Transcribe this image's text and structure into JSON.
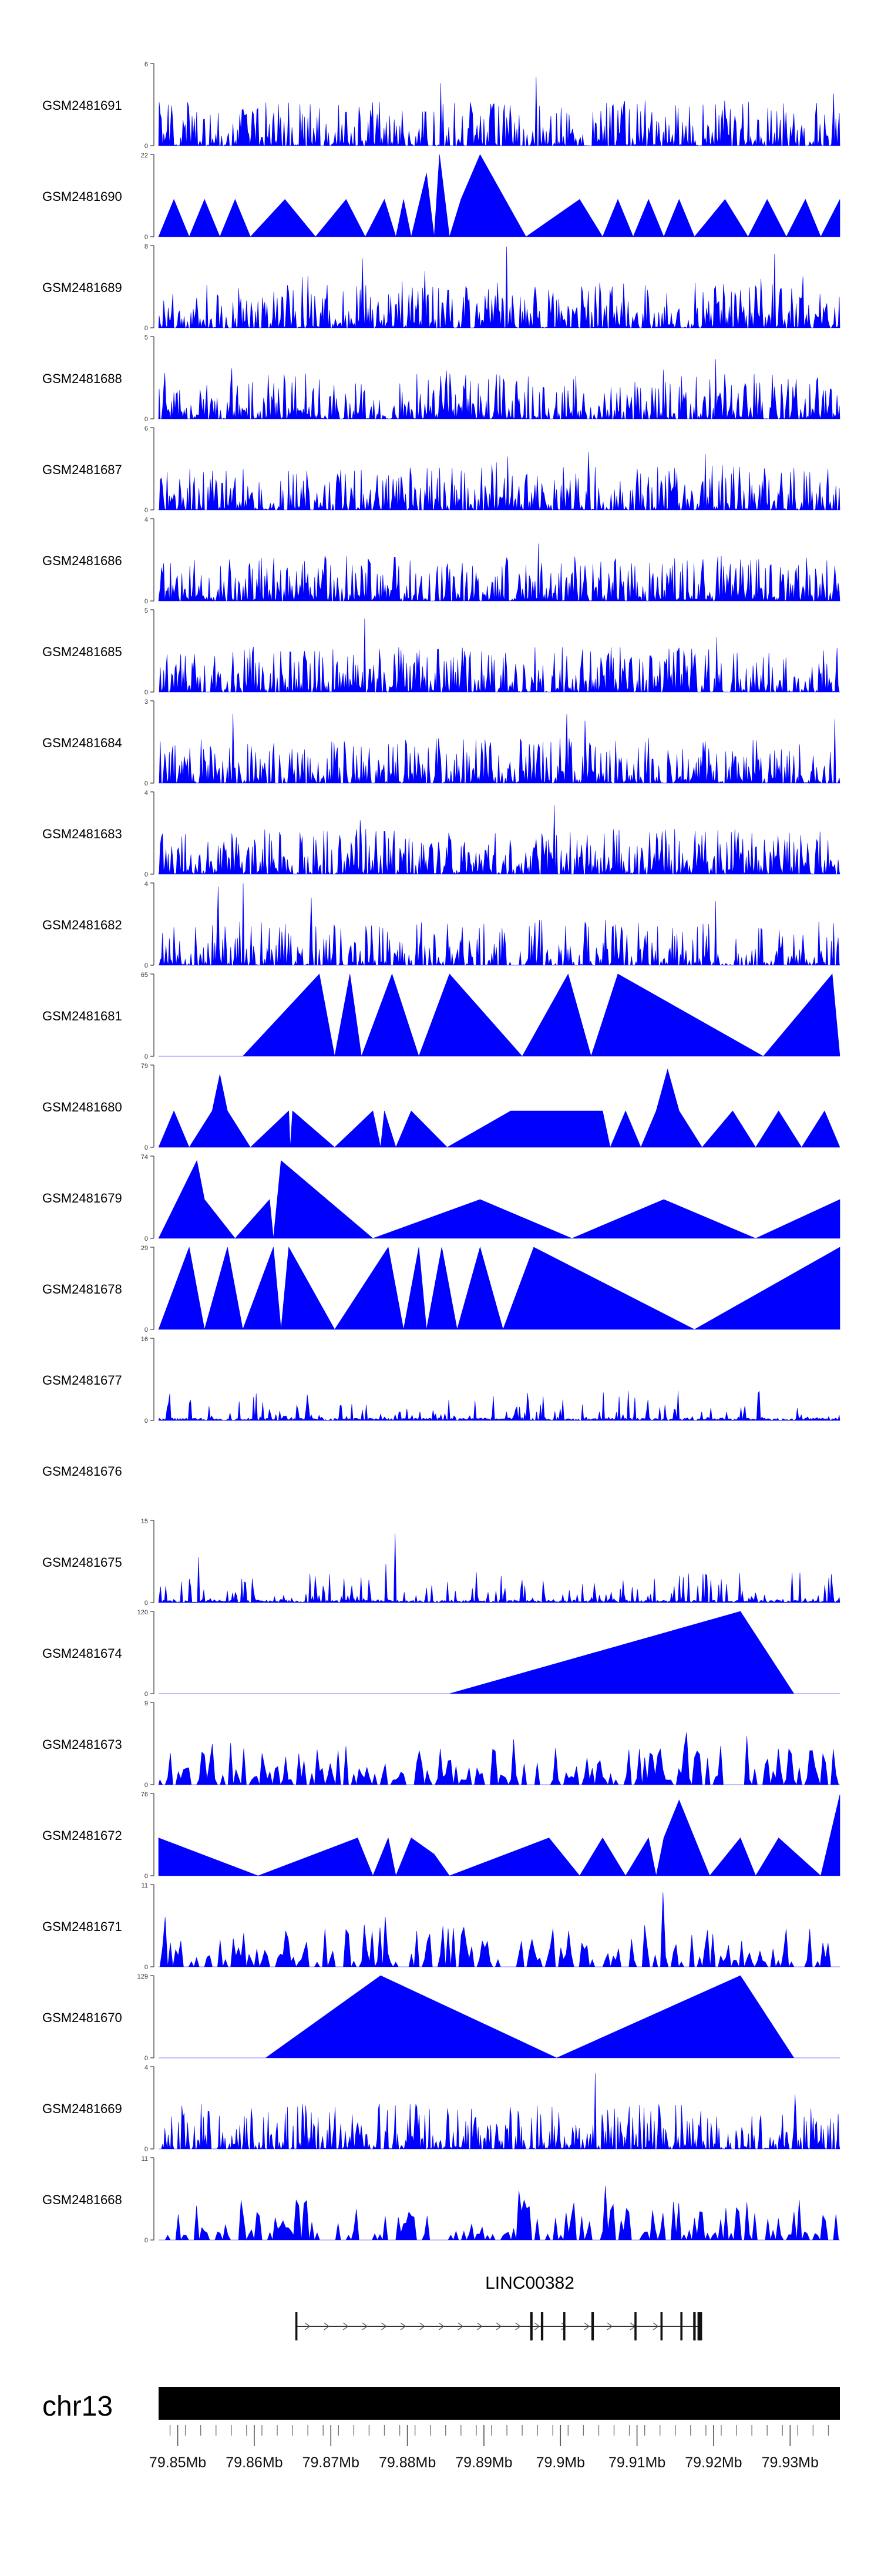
{
  "chart_data": {
    "type": "area",
    "chromosome": "chr13",
    "gene": {
      "name": "LINC00382"
    },
    "x_range_mb": [
      79.8475,
      79.9365
    ],
    "x_ticks": [
      {
        "value": 79.85,
        "label": "79.85Mb"
      },
      {
        "value": 79.86,
        "label": "79.86Mb"
      },
      {
        "value": 79.87,
        "label": "79.87Mb"
      },
      {
        "value": 79.88,
        "label": "79.88Mb"
      },
      {
        "value": 79.89,
        "label": "79.89Mb"
      },
      {
        "value": 79.9,
        "label": "79.9Mb"
      },
      {
        "value": 79.91,
        "label": "79.91Mb"
      },
      {
        "value": 79.92,
        "label": "79.92Mb"
      },
      {
        "value": 79.93,
        "label": "79.93Mb"
      }
    ],
    "fill_color": "#0000ff",
    "series": [
      {
        "name": "GSM2481691",
        "ymax": 6,
        "ymax_label": "6",
        "ylabel": "0",
        "style": "dense",
        "density": 0.75,
        "empty": false
      },
      {
        "name": "GSM2481690",
        "ymax": 22,
        "ymax_label": "22",
        "ylabel": "0",
        "style": "peaks",
        "peaks": [
          [
            79.8475,
            0
          ],
          [
            79.8495,
            10
          ],
          [
            79.8515,
            0
          ],
          [
            79.8535,
            10
          ],
          [
            79.8555,
            0
          ],
          [
            79.8575,
            10
          ],
          [
            79.8595,
            0
          ],
          [
            79.864,
            10
          ],
          [
            79.868,
            0
          ],
          [
            79.872,
            10
          ],
          [
            79.8745,
            0
          ],
          [
            79.877,
            10
          ],
          [
            79.8785,
            0
          ],
          [
            79.8795,
            10
          ],
          [
            79.8805,
            0
          ],
          [
            79.8825,
            17
          ],
          [
            79.8835,
            0
          ],
          [
            79.8842,
            22
          ],
          [
            79.8855,
            0
          ],
          [
            79.887,
            10
          ],
          [
            79.8895,
            22
          ],
          [
            79.8955,
            0
          ],
          [
            79.9025,
            10
          ],
          [
            79.9055,
            0
          ],
          [
            79.9075,
            10
          ],
          [
            79.9095,
            0
          ],
          [
            79.9115,
            10
          ],
          [
            79.9135,
            0
          ],
          [
            79.9155,
            10
          ],
          [
            79.9175,
            0
          ],
          [
            79.9215,
            10
          ],
          [
            79.9245,
            0
          ],
          [
            79.927,
            10
          ],
          [
            79.9295,
            0
          ],
          [
            79.932,
            10
          ],
          [
            79.934,
            0
          ],
          [
            79.9365,
            10
          ]
        ]
      },
      {
        "name": "GSM2481689",
        "ymax": 8,
        "ymax_label": "8",
        "ylabel": "0",
        "style": "dense",
        "density": 0.85,
        "empty": false
      },
      {
        "name": "GSM2481688",
        "ymax": 5,
        "ymax_label": "5",
        "ylabel": "0",
        "style": "dense",
        "density": 0.8,
        "empty": false
      },
      {
        "name": "GSM2481687",
        "ymax": 6,
        "ymax_label": "6",
        "ylabel": "0",
        "style": "dense",
        "density": 0.8,
        "empty": false
      },
      {
        "name": "GSM2481686",
        "ymax": 4,
        "ymax_label": "4",
        "ylabel": "0",
        "style": "dense",
        "density": 0.9,
        "empty": false
      },
      {
        "name": "GSM2481685",
        "ymax": 5,
        "ymax_label": "5",
        "ylabel": "0",
        "style": "dense",
        "density": 0.8,
        "empty": false
      },
      {
        "name": "GSM2481684",
        "ymax": 3,
        "ymax_label": "3",
        "ylabel": "0",
        "style": "dense",
        "density": 0.85,
        "empty": false
      },
      {
        "name": "GSM2481683",
        "ymax": 4,
        "ymax_label": "4",
        "ylabel": "0",
        "style": "dense",
        "density": 0.85,
        "empty": false
      },
      {
        "name": "GSM2481682",
        "ymax": 4,
        "ymax_label": "4",
        "ylabel": "0",
        "style": "dense",
        "density": 0.65,
        "empty": false
      },
      {
        "name": "GSM2481681",
        "ymax": 65,
        "ymax_label": "65",
        "ylabel": "0",
        "style": "peaks",
        "peaks": [
          [
            79.8585,
            0
          ],
          [
            79.8685,
            65
          ],
          [
            79.8705,
            0
          ],
          [
            79.8725,
            65
          ],
          [
            79.874,
            0
          ],
          [
            79.878,
            65
          ],
          [
            79.8815,
            0
          ],
          [
            79.8855,
            65
          ],
          [
            79.895,
            0
          ],
          [
            79.901,
            65
          ],
          [
            79.904,
            0
          ],
          [
            79.9075,
            65
          ],
          [
            79.9265,
            0
          ],
          [
            79.9355,
            65
          ],
          [
            79.9365,
            0
          ]
        ]
      },
      {
        "name": "GSM2481680",
        "ymax": 79,
        "ymax_label": "79",
        "ylabel": "0",
        "style": "peaks",
        "peaks": [
          [
            79.8475,
            0
          ],
          [
            79.8495,
            35
          ],
          [
            79.8515,
            0
          ],
          [
            79.8545,
            35
          ],
          [
            79.8555,
            70
          ],
          [
            79.8565,
            35
          ],
          [
            79.8595,
            0
          ],
          [
            79.8645,
            35
          ],
          [
            79.8647,
            0
          ],
          [
            79.865,
            35
          ],
          [
            79.8705,
            0
          ],
          [
            79.8755,
            35
          ],
          [
            79.8765,
            0
          ],
          [
            79.877,
            35
          ],
          [
            79.8785,
            0
          ],
          [
            79.8805,
            35
          ],
          [
            79.8852,
            0
          ],
          [
            79.8935,
            35
          ],
          [
            79.9055,
            35
          ],
          [
            79.9065,
            0
          ],
          [
            79.9085,
            35
          ],
          [
            79.9105,
            0
          ],
          [
            79.9125,
            35
          ],
          [
            79.914,
            75
          ],
          [
            79.9155,
            35
          ],
          [
            79.9185,
            0
          ],
          [
            79.9225,
            35
          ],
          [
            79.9255,
            0
          ],
          [
            79.9285,
            35
          ],
          [
            79.9315,
            0
          ],
          [
            79.9345,
            35
          ],
          [
            79.9365,
            0
          ]
        ]
      },
      {
        "name": "GSM2481679",
        "ymax": 74,
        "ymax_label": "74",
        "ylabel": "0",
        "style": "peaks",
        "peaks": [
          [
            79.8475,
            0
          ],
          [
            79.8525,
            70
          ],
          [
            79.8535,
            35
          ],
          [
            79.8575,
            0
          ],
          [
            79.862,
            35
          ],
          [
            79.8625,
            0
          ],
          [
            79.8635,
            70
          ],
          [
            79.8755,
            0
          ],
          [
            79.8895,
            35
          ],
          [
            79.9015,
            0
          ],
          [
            79.9135,
            35
          ],
          [
            79.9255,
            0
          ],
          [
            79.9365,
            35
          ]
        ]
      },
      {
        "name": "GSM2481678",
        "ymax": 29,
        "ymax_label": "29",
        "ylabel": "0",
        "style": "peaks",
        "peaks": [
          [
            79.8475,
            0
          ],
          [
            79.8515,
            29
          ],
          [
            79.8535,
            0
          ],
          [
            79.8565,
            29
          ],
          [
            79.8585,
            0
          ],
          [
            79.8625,
            29
          ],
          [
            79.8635,
            0
          ],
          [
            79.8645,
            29
          ],
          [
            79.8705,
            0
          ],
          [
            79.8775,
            29
          ],
          [
            79.8795,
            0
          ],
          [
            79.8815,
            29
          ],
          [
            79.8825,
            0
          ],
          [
            79.8845,
            29
          ],
          [
            79.8865,
            0
          ],
          [
            79.8895,
            29
          ],
          [
            79.8925,
            0
          ],
          [
            79.8965,
            29
          ],
          [
            79.9175,
            0
          ],
          [
            79.9365,
            29
          ]
        ]
      },
      {
        "name": "GSM2481677",
        "ymax": 16,
        "ymax_label": "16",
        "ylabel": "0",
        "style": "sparse",
        "density": 0.35,
        "empty": false
      },
      {
        "name": "GSM2481676",
        "ymax": null,
        "ymax_label": "",
        "ylabel": "",
        "style": "none",
        "empty": true
      },
      {
        "name": "GSM2481675",
        "ymax": 15,
        "ymax_label": "15",
        "ylabel": "0",
        "style": "sparse",
        "density": 0.4,
        "empty": false
      },
      {
        "name": "GSM2481674",
        "ymax": 120,
        "ymax_label": "120",
        "ylabel": "0",
        "style": "peaks",
        "peaks": [
          [
            79.8855,
            0
          ],
          [
            79.9235,
            120
          ],
          [
            79.9305,
            0
          ]
        ]
      },
      {
        "name": "GSM2481673",
        "ymax": 9,
        "ymax_label": "9",
        "ylabel": "0",
        "style": "sawtooth",
        "density": 0.6,
        "empty": false
      },
      {
        "name": "GSM2481672",
        "ymax": 76,
        "ymax_label": "76",
        "ylabel": "0",
        "style": "peaks",
        "peaks": [
          [
            79.8475,
            35
          ],
          [
            79.8605,
            0
          ],
          [
            79.8735,
            35
          ],
          [
            79.8755,
            0
          ],
          [
            79.8775,
            35
          ],
          [
            79.8785,
            0
          ],
          [
            79.8805,
            35
          ],
          [
            79.8835,
            20
          ],
          [
            79.8855,
            0
          ],
          [
            79.8985,
            35
          ],
          [
            79.9025,
            0
          ],
          [
            79.9055,
            35
          ],
          [
            79.9085,
            0
          ],
          [
            79.9115,
            35
          ],
          [
            79.9125,
            0
          ],
          [
            79.9135,
            35
          ],
          [
            79.9155,
            70
          ],
          [
            79.9195,
            0
          ],
          [
            79.9235,
            35
          ],
          [
            79.9255,
            0
          ],
          [
            79.9285,
            35
          ],
          [
            79.934,
            0
          ],
          [
            79.9365,
            75
          ]
        ]
      },
      {
        "name": "GSM2481671",
        "ymax": 11,
        "ymax_label": "11",
        "ylabel": "0",
        "style": "sawtooth",
        "density": 0.55,
        "empty": false
      },
      {
        "name": "GSM2481670",
        "ymax": 129,
        "ymax_label": "129",
        "ylabel": "0",
        "style": "peaks",
        "peaks": [
          [
            79.8615,
            0
          ],
          [
            79.8765,
            129
          ],
          [
            79.8995,
            0
          ],
          [
            79.9235,
            129
          ],
          [
            79.9305,
            0
          ]
        ]
      },
      {
        "name": "GSM2481669",
        "ymax": 4,
        "ymax_label": "4",
        "ylabel": "0",
        "style": "dense",
        "density": 0.75,
        "empty": false
      },
      {
        "name": "GSM2481668",
        "ymax": 11,
        "ymax_label": "11",
        "ylabel": "0",
        "style": "sawtooth",
        "density": 0.5,
        "empty": false
      }
    ]
  }
}
